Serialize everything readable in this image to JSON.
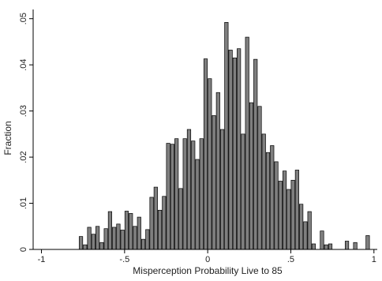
{
  "chart_data": {
    "type": "bar",
    "title": "",
    "xlabel": "Misperception Probability Live to 85",
    "ylabel": "Fraction",
    "xlim": [
      -1.05,
      1.02
    ],
    "ylim": [
      0,
      0.052
    ],
    "bin_width": 0.025,
    "x_ticks": [
      {
        "value": -1,
        "label": "-1"
      },
      {
        "value": -0.5,
        "label": "-.5"
      },
      {
        "value": 0,
        "label": "0"
      },
      {
        "value": 0.5,
        "label": ".5"
      },
      {
        "value": 1,
        "label": "1"
      }
    ],
    "y_ticks": [
      {
        "value": 0,
        "label": "0"
      },
      {
        "value": 0.01,
        "label": ".01"
      },
      {
        "value": 0.02,
        "label": ".02"
      },
      {
        "value": 0.03,
        "label": ".03"
      },
      {
        "value": 0.04,
        "label": ".04"
      },
      {
        "value": 0.05,
        "label": ".05"
      }
    ],
    "bar_color": "#7f7f7f",
    "bar_edge_color": "#000000",
    "grid": false,
    "x": [
      -0.7625,
      -0.7375,
      -0.7125,
      -0.6875,
      -0.6625,
      -0.6375,
      -0.6125,
      -0.5875,
      -0.5625,
      -0.5375,
      -0.5125,
      -0.4875,
      -0.4625,
      -0.4375,
      -0.4125,
      -0.3875,
      -0.3625,
      -0.3375,
      -0.3125,
      -0.2875,
      -0.2625,
      -0.2375,
      -0.2125,
      -0.1875,
      -0.1625,
      -0.1375,
      -0.1125,
      -0.0875,
      -0.0625,
      -0.0375,
      -0.0125,
      0.0125,
      0.0375,
      0.0625,
      0.0875,
      0.1125,
      0.1375,
      0.1625,
      0.1875,
      0.2125,
      0.2375,
      0.2625,
      0.2875,
      0.3125,
      0.3375,
      0.3625,
      0.3875,
      0.4125,
      0.4375,
      0.4625,
      0.4875,
      0.5125,
      0.5375,
      0.5625,
      0.5875,
      0.6125,
      0.6375,
      0.6625,
      0.6875,
      0.7125,
      0.7375,
      0.7625,
      0.7875,
      0.8125,
      0.8375,
      0.8625,
      0.8875,
      0.9125,
      0.9375,
      0.9625
    ],
    "values": [
      0.0028,
      0.001,
      0.0048,
      0.0033,
      0.005,
      0.0015,
      0.0045,
      0.0082,
      0.0048,
      0.0055,
      0.0042,
      0.0083,
      0.0078,
      0.005,
      0.007,
      0.0022,
      0.0043,
      0.0113,
      0.0135,
      0.0085,
      0.0115,
      0.023,
      0.0228,
      0.024,
      0.0132,
      0.024,
      0.026,
      0.0235,
      0.0195,
      0.024,
      0.0413,
      0.037,
      0.029,
      0.034,
      0.026,
      0.0492,
      0.0432,
      0.0415,
      0.0435,
      0.025,
      0.046,
      0.0318,
      0.0412,
      0.031,
      0.025,
      0.021,
      0.0225,
      0.019,
      0.0148,
      0.017,
      0.013,
      0.015,
      0.0172,
      0.0098,
      0.006,
      0.0082,
      0.0012,
      0.0,
      0.004,
      0.001,
      0.0012,
      0.0,
      0.0,
      0.0,
      0.0018,
      0.0,
      0.0015,
      0.0,
      0.0,
      0.003
    ]
  }
}
